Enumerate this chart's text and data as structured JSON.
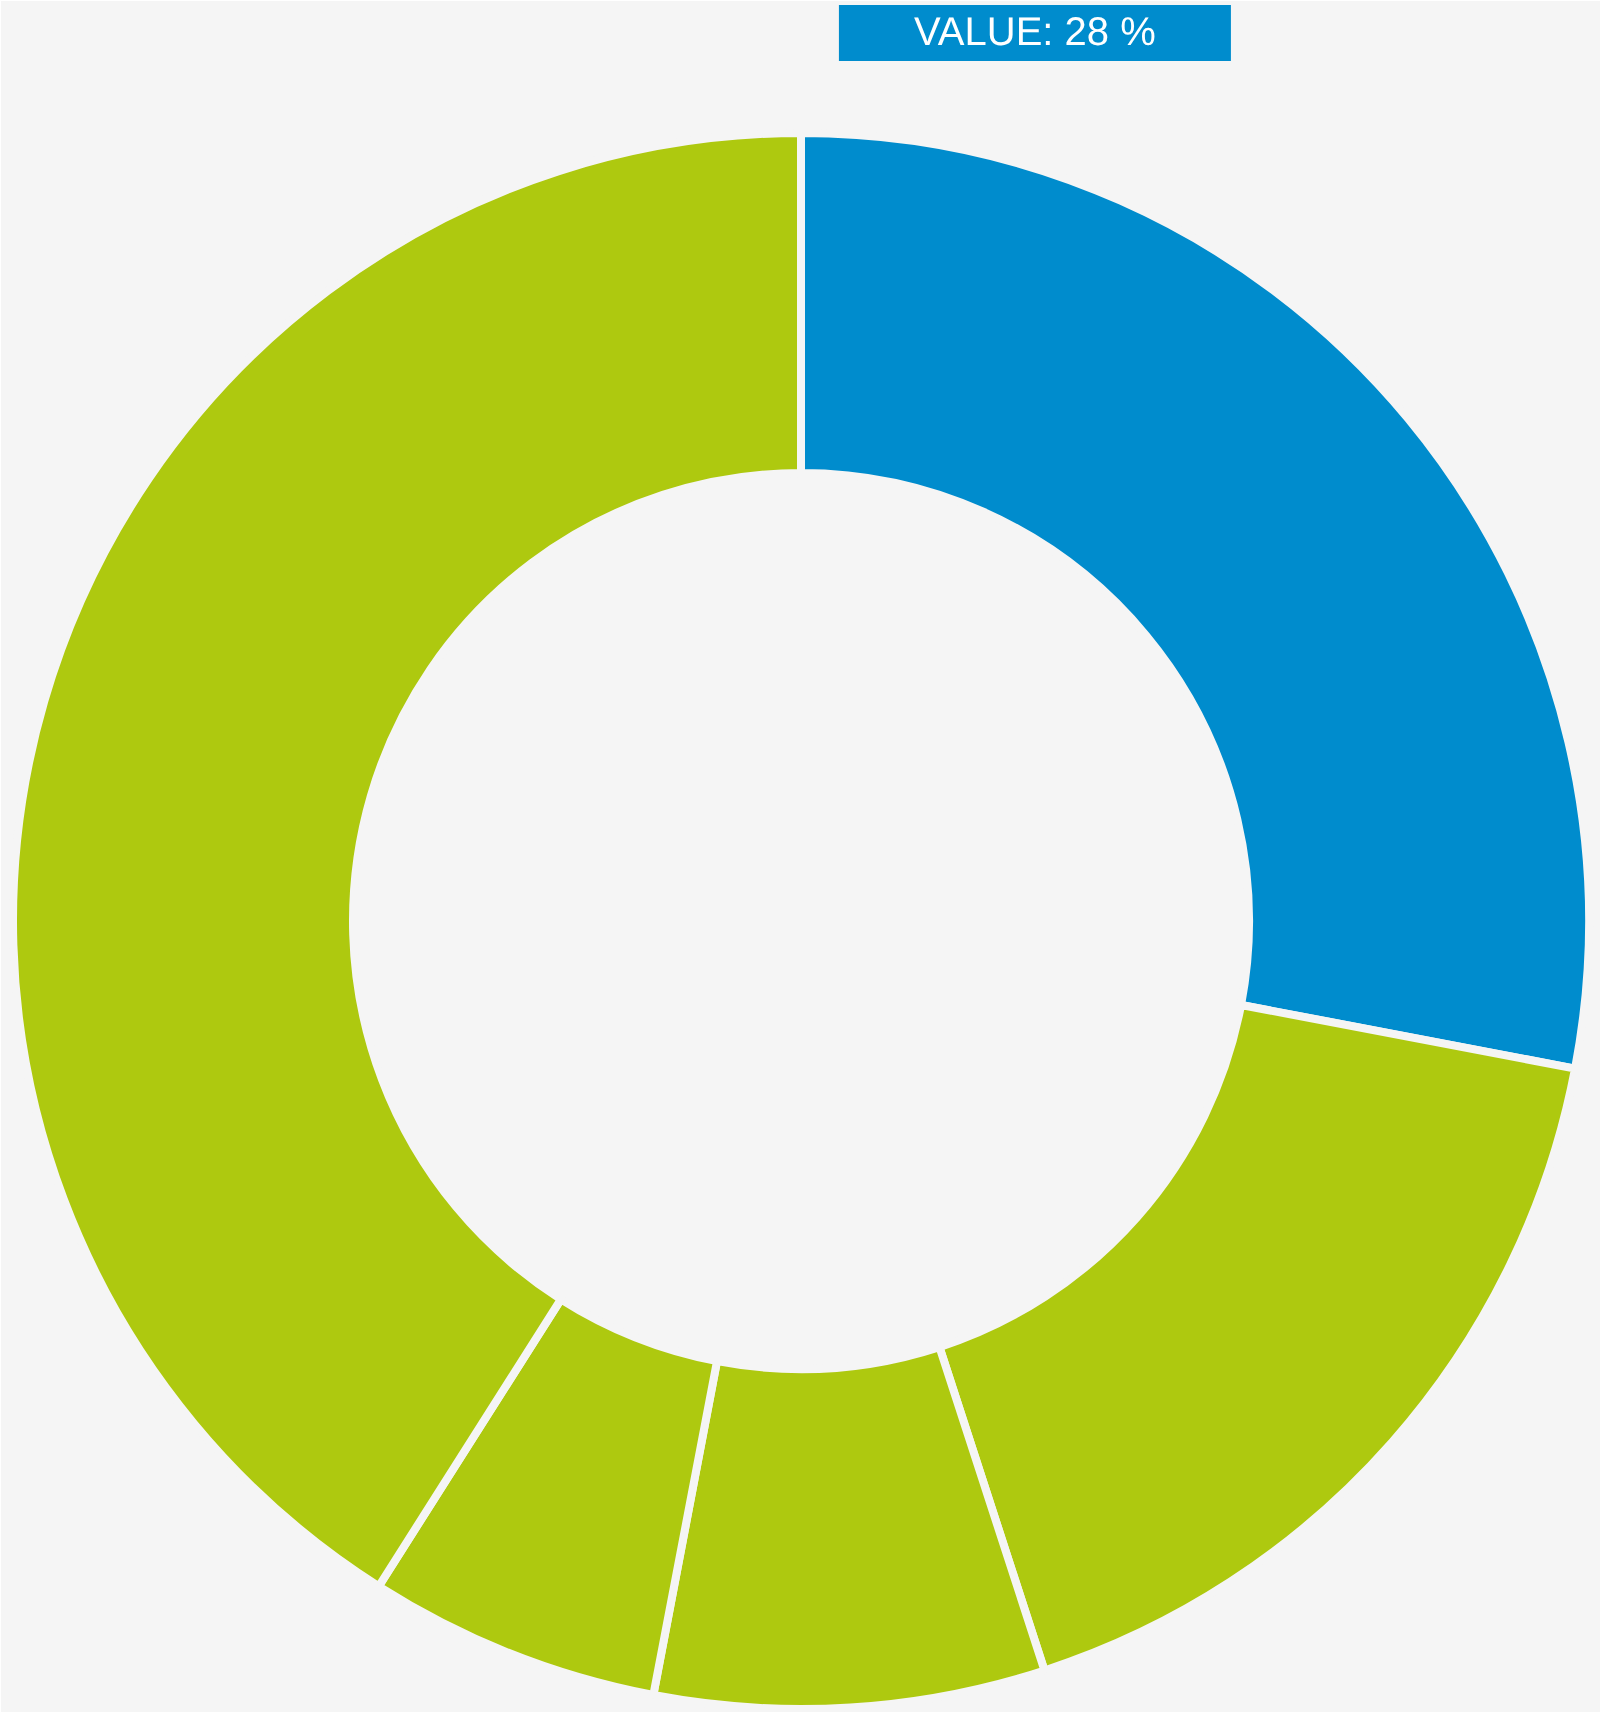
{
  "chart_data": {
    "type": "donut",
    "categories": [
      null,
      null,
      null,
      null,
      null
    ],
    "values": [
      28,
      17,
      8,
      6,
      41
    ],
    "colors": [
      "#008ccd",
      "#aec90f",
      "#aec90f",
      "#aec90f",
      "#aec90f"
    ],
    "value_labels": [
      "VALUE: 28 %",
      null,
      null,
      null,
      null
    ]
  }
}
